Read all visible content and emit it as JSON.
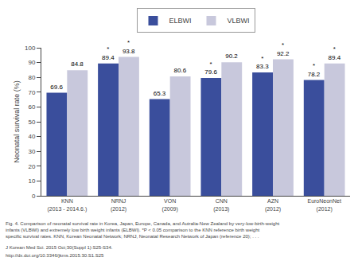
{
  "chart_data": {
    "type": "bar",
    "categories": [
      "KNN\n(2013 - 2014.6.)",
      "NRNJ\n(2012)",
      "VON\n(2009)",
      "CNN\n(2013)",
      "AZN\n(2012)",
      "EuroNeonNet\n(2012)"
    ],
    "series": [
      {
        "name": "ELBWI",
        "color": "#3a4e9c",
        "values": [
          69.6,
          89.4,
          65.3,
          79.6,
          83.3,
          78.2
        ],
        "significance": [
          null,
          "*",
          null,
          "*",
          "*",
          "*"
        ]
      },
      {
        "name": "VLBWI",
        "color": "#c8c8dc",
        "values": [
          84.8,
          93.8,
          80.6,
          90.2,
          92.2,
          89.4
        ],
        "significance": [
          null,
          "*",
          null,
          null,
          "*",
          "*"
        ]
      }
    ],
    "ylabel": "Neonatal survival rate (%)",
    "ylim": [
      0,
      100
    ],
    "yticks": [
      0,
      10,
      20,
      30,
      40,
      50,
      60,
      70,
      80,
      90,
      100
    ],
    "grid": false,
    "legend": "upper center",
    "data_labels": true,
    "annotations": [
      "Fig. 4. Comparison of neonatal survival rate in Korea, Japan, Europe, Canada, and Autralia-New Zealand by very-low-birth-weight\ninfants (VLBWI) and extremely low birth weight infants (ELBWI). *P < 0.05 comparison to the KNN reference birth weight\nspecific survival rates. KNN, Korean Neonatal Network; NRNJ, Neonatal Research Network of Japan (reference 20); . . .",
      "J Korean Med Sci. 2015 Oct;30(Suppl 1):S25-S34.",
      "http://dx.doi.org/10.3346/jkms.2015.30.S1.S25"
    ]
  }
}
